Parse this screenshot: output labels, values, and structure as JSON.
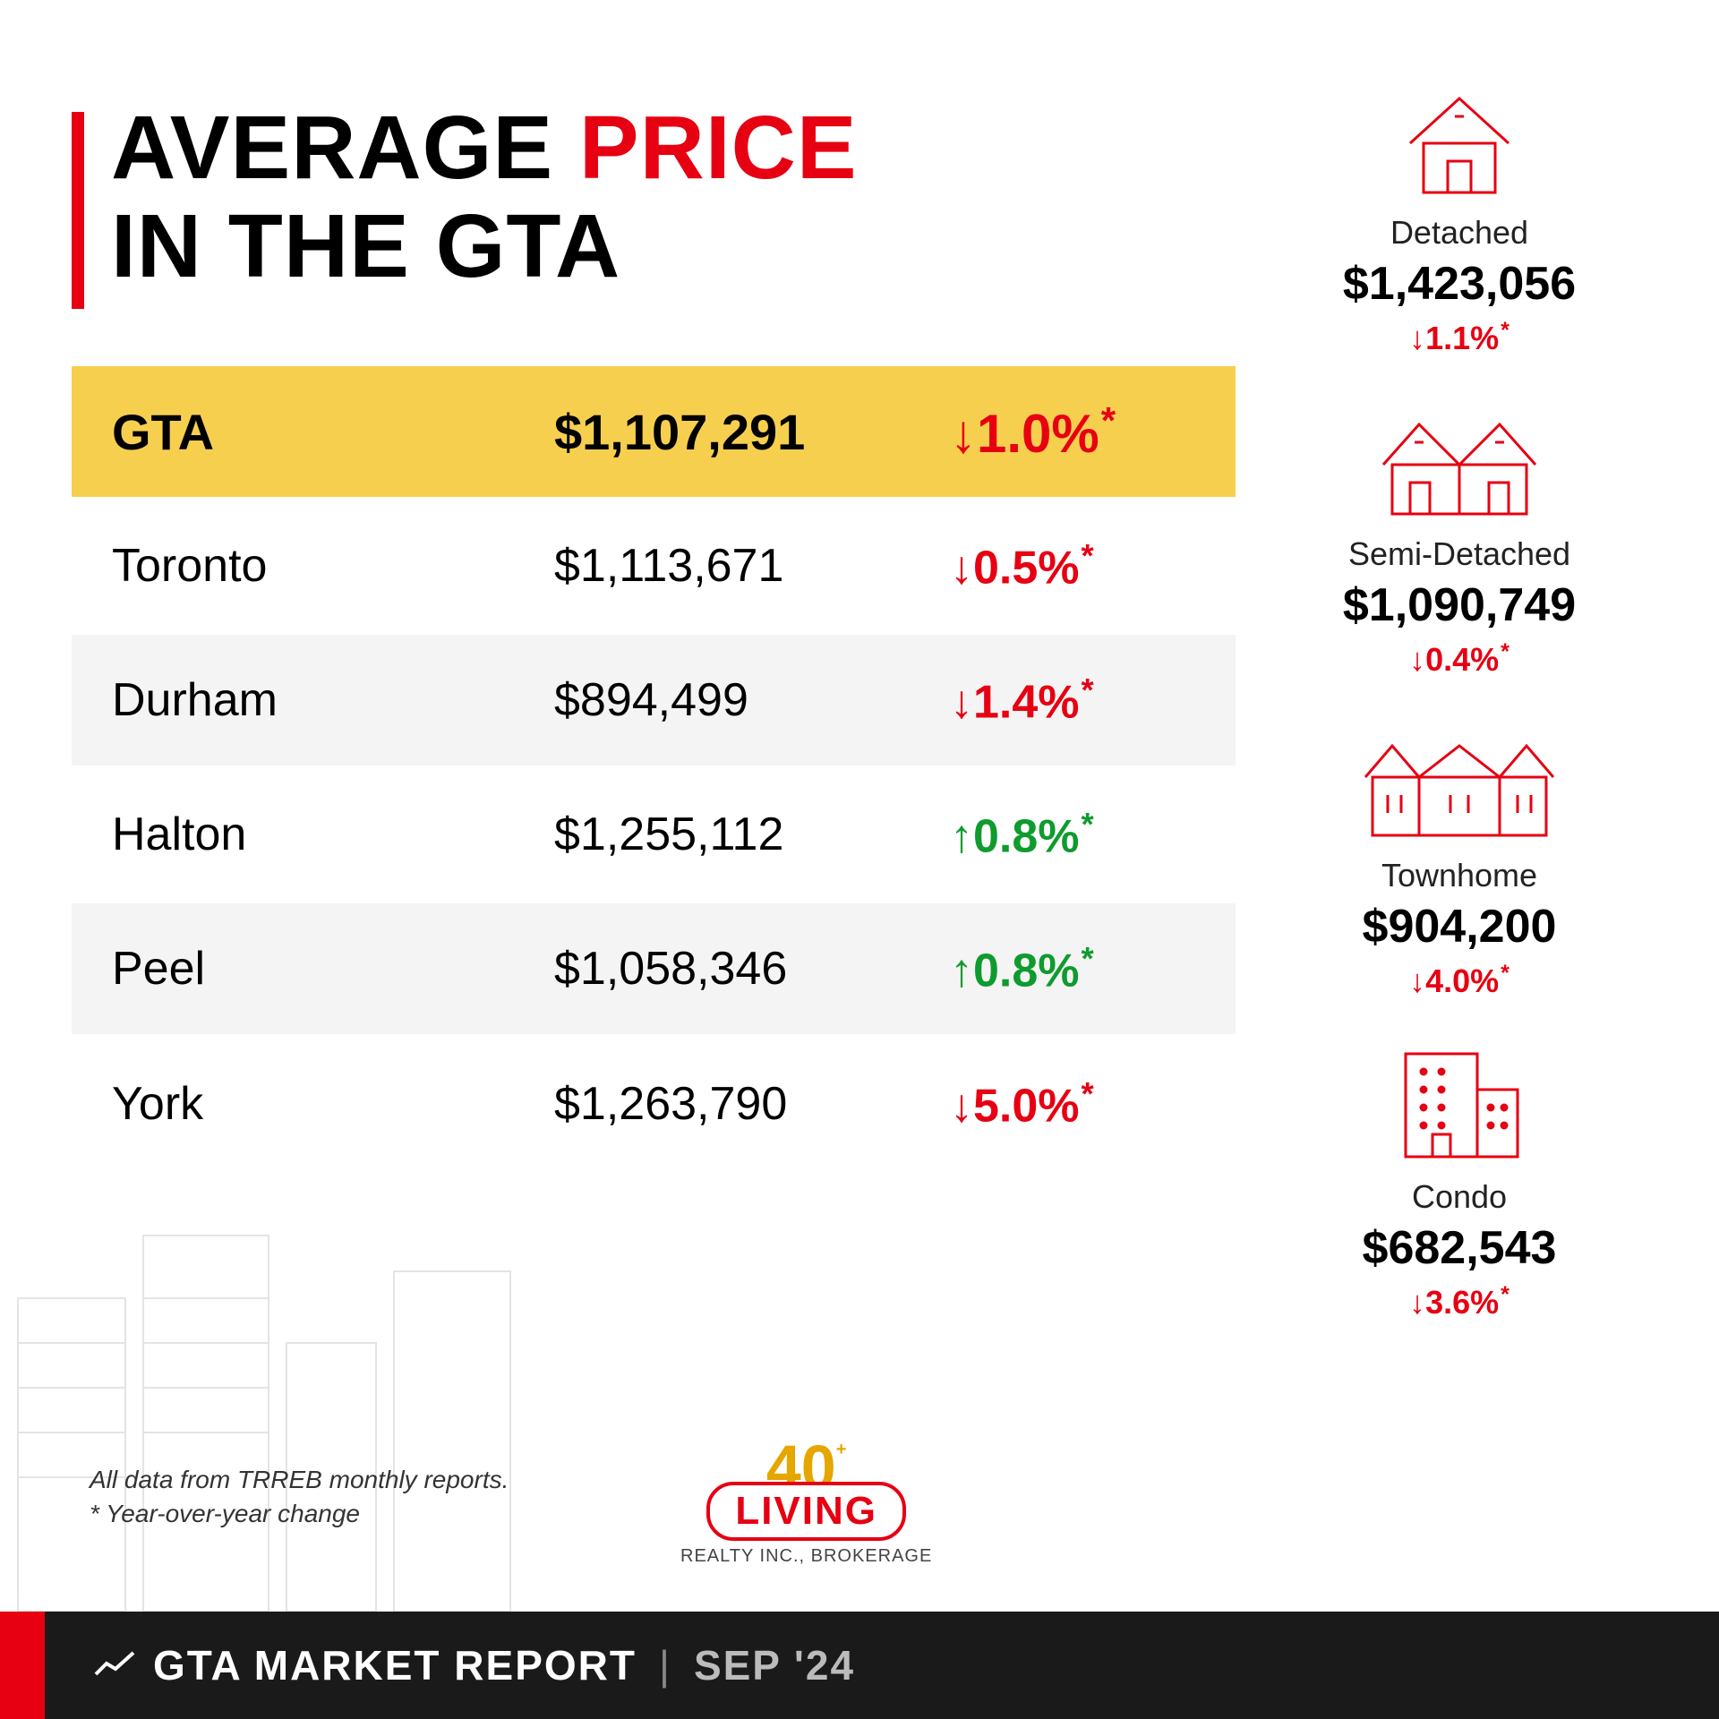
{
  "colors": {
    "accent_red": "#e60012",
    "accent_green": "#0f9b2e",
    "highlight_row_bg": "#f7cf4f",
    "alt_row_bg": "#f4f4f4",
    "footer_bg": "#1a1a1a",
    "text_black": "#000000",
    "text_white": "#ffffff"
  },
  "title": {
    "line1_pre": "AVERAGE ",
    "line1_accent": "PRICE",
    "line2": "IN THE GTA"
  },
  "table": {
    "type": "table",
    "rows": [
      {
        "region": "GTA",
        "price": "$1,107,291",
        "change": "1.0%",
        "dir": "down",
        "highlight": true
      },
      {
        "region": "Toronto",
        "price": "$1,113,671",
        "change": "0.5%",
        "dir": "down",
        "highlight": false
      },
      {
        "region": "Durham",
        "price": "$894,499",
        "change": "1.4%",
        "dir": "down",
        "highlight": false
      },
      {
        "region": "Halton",
        "price": "$1,255,112",
        "change": "0.8%",
        "dir": "up",
        "highlight": false
      },
      {
        "region": "Peel",
        "price": "$1,058,346",
        "change": "0.8%",
        "dir": "up",
        "highlight": false
      },
      {
        "region": "York",
        "price": "$1,263,790",
        "change": "5.0%",
        "dir": "down",
        "highlight": false
      }
    ]
  },
  "property_types": [
    {
      "label": "Detached",
      "price": "$1,423,056",
      "change": "1.1%",
      "dir": "down",
      "icon": "house"
    },
    {
      "label": "Semi-Detached",
      "price": "$1,090,749",
      "change": "0.4%",
      "dir": "down",
      "icon": "semi"
    },
    {
      "label": "Townhome",
      "price": "$904,200",
      "change": "4.0%",
      "dir": "down",
      "icon": "town"
    },
    {
      "label": "Condo",
      "price": "$682,543",
      "change": "3.6%",
      "dir": "down",
      "icon": "condo"
    }
  ],
  "footnote": {
    "line1": "All data from TRREB monthly reports.",
    "line2": "* Year-over-year change"
  },
  "logo": {
    "forty": "40",
    "plus": "+",
    "living": "LIVING",
    "sub": "REALTY INC., BROKERAGE"
  },
  "footer": {
    "title": "GTA MARKET REPORT",
    "date": "SEP '24"
  },
  "arrows": {
    "down": "↓",
    "up": "↑"
  }
}
